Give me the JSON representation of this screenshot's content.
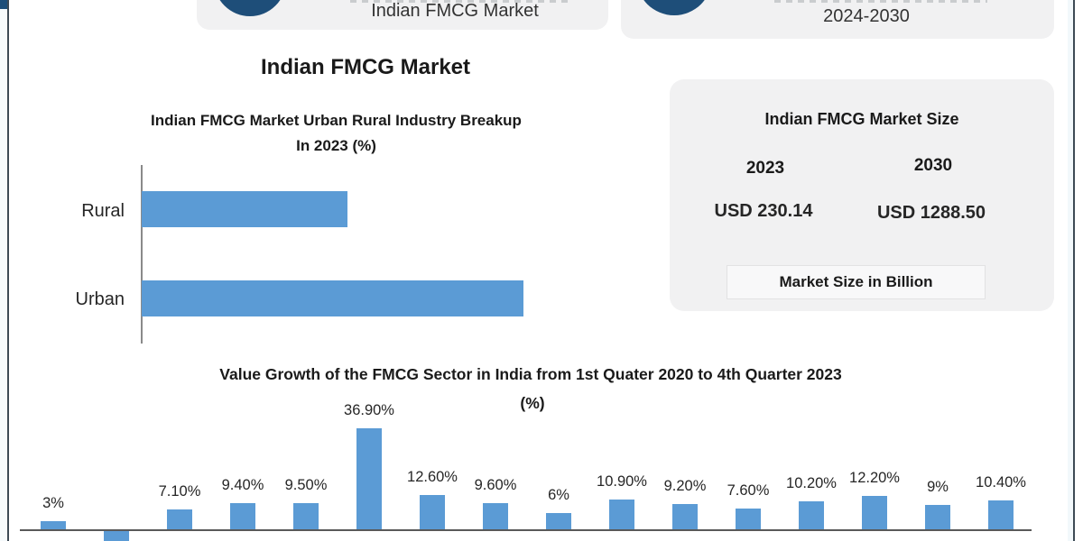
{
  "page": {
    "title": "Indian FMCG Market"
  },
  "header": {
    "left_badge": {
      "logo": "navy-circle-logo",
      "label": "Indian FMCG Market"
    },
    "right_badge": {
      "logo": "navy-circle-logo",
      "label": "2024-2030"
    }
  },
  "market_size_panel": {
    "title": "Indian FMCG Market Size",
    "columns": [
      {
        "year": "2023",
        "value": "USD 230.14"
      },
      {
        "year": "2030",
        "value": "USD 1288.50"
      }
    ],
    "footnote": "Market Size in Billion",
    "value_color": "#1A87C9"
  },
  "chart_data": [
    {
      "type": "bar",
      "orientation": "horizontal",
      "title": "Indian FMCG Market Urban Rural Industry Breakup In 2023 (%)",
      "title_lines": [
        "Indian FMCG Market Urban Rural Industry Breakup",
        "In 2023 (%)"
      ],
      "categories": [
        "Rural",
        "Urban"
      ],
      "values": [
        35,
        65
      ],
      "values_note": "no data labels shown; values estimated from bar lengths",
      "unit": "%",
      "bar_color": "#5B9BD5",
      "xlim": [
        0,
        65
      ],
      "grid": false,
      "legend": false
    },
    {
      "type": "bar",
      "orientation": "vertical",
      "title": "Value Growth of the FMCG Sector in India from 1st Quater 2020 to 4th Quarter 2023",
      "title_line2": "(%)",
      "values": [
        3,
        -6,
        7.1,
        9.4,
        9.5,
        36.9,
        12.6,
        9.6,
        6,
        10.9,
        9.2,
        7.6,
        10.2,
        12.2,
        9,
        10.4
      ],
      "data_labels": [
        "3%",
        "",
        "7.10%",
        "9.40%",
        "9.50%",
        "36.90%",
        "12.60%",
        "9.60%",
        "6%",
        "10.90%",
        "9.20%",
        "7.60%",
        "10.20%",
        "12.20%",
        "9%",
        "10.40%"
      ],
      "notes": "16 quarterly bars; second bar is negative, extends below the axis and is cut off at the image bottom edge with no visible label (value estimated); x-axis tick labels not visible",
      "unit": "%",
      "bar_color": "#5B9BD5",
      "baseline": 0,
      "grid": false,
      "legend": false
    }
  ],
  "colors": {
    "bar_blue": "#5B9BD5",
    "navy_circle": "#1E4E79",
    "value_blue": "#1A87C9",
    "card_gray": "#F1F1F2",
    "axis_gray": "#595959",
    "frame_dark": "#3D4A55"
  }
}
